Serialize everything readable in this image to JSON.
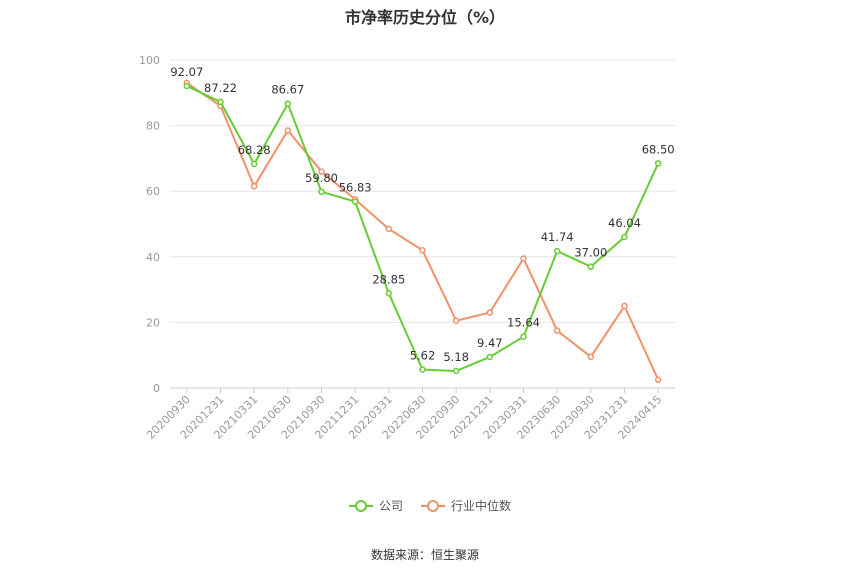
{
  "chart_data": {
    "type": "line",
    "title": "市净率历史分位（%）",
    "categories": [
      "20200930",
      "20201231",
      "20210331",
      "20210630",
      "20210930",
      "20211231",
      "20220331",
      "20220630",
      "20220930",
      "20221231",
      "20230331",
      "20230630",
      "20230930",
      "20231231",
      "20240415"
    ],
    "series": [
      {
        "name": "公司",
        "color": "#66cc33",
        "values": [
          92.07,
          87.22,
          68.28,
          86.67,
          59.8,
          56.83,
          28.85,
          5.62,
          5.18,
          9.47,
          15.64,
          41.74,
          37.0,
          46.04,
          68.5
        ],
        "labels": [
          "92.07",
          "87.22",
          "68.28",
          "86.67",
          "59.80",
          "56.83",
          "28.85",
          "5.62",
          "5.18",
          "9.47",
          "15.64",
          "41.74",
          "37.00",
          "46.04",
          "68.50"
        ]
      },
      {
        "name": "行业中位数",
        "color": "#f29068",
        "values": [
          93,
          86,
          61.5,
          78.5,
          66,
          57.5,
          48.5,
          42,
          20.5,
          23,
          39.5,
          17.5,
          9.5,
          25,
          2.5
        ]
      }
    ],
    "ylim": [
      0,
      100
    ],
    "yticks": [
      0,
      20,
      40,
      60,
      80,
      100
    ],
    "grid": true,
    "legend": "bottom",
    "xlabel": "",
    "ylabel": ""
  },
  "source": "数据来源：恒生聚源"
}
